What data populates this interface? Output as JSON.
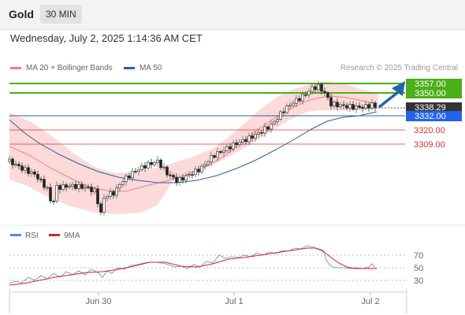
{
  "header": {
    "instrument": "Gold",
    "timeframe": "30 MIN"
  },
  "datetime": "Wednesday, July 2, 2025 1:14:36 AM CET",
  "legend": {
    "ma20": {
      "label": "MA 20 + Bollinger Bands",
      "color": "#f08080"
    },
    "ma50": {
      "label": "MA 50",
      "color": "#2e5fa6"
    }
  },
  "credit": "Research © 2025 Trading Central",
  "levels": [
    {
      "value": 3357.0,
      "label": "3357.00",
      "kind": "resistance",
      "color": "#4caf1a"
    },
    {
      "value": 3350.0,
      "label": "3350.00",
      "kind": "resistance",
      "color": "#4caf1a"
    },
    {
      "value": 3338.29,
      "label": "3338.29",
      "kind": "last-price",
      "color": "#333333"
    },
    {
      "value": 3332.0,
      "label": "3332.00",
      "kind": "pivot",
      "color": "#2563eb"
    },
    {
      "value": 3320.0,
      "label": "3320.00",
      "kind": "support",
      "color": "#e03030"
    },
    {
      "value": 3309.0,
      "label": "3309.00",
      "kind": "support",
      "color": "#e03030"
    }
  ],
  "rsi_legend": {
    "rsi": {
      "label": "RSI",
      "color": "#5b87d8"
    },
    "ma9": {
      "label": "9MA",
      "color": "#e02020"
    }
  },
  "rsi_levels": [
    "70",
    "50",
    "30"
  ],
  "x_labels": [
    "Jun 30",
    "Jul 1",
    "Jul 2"
  ]
}
